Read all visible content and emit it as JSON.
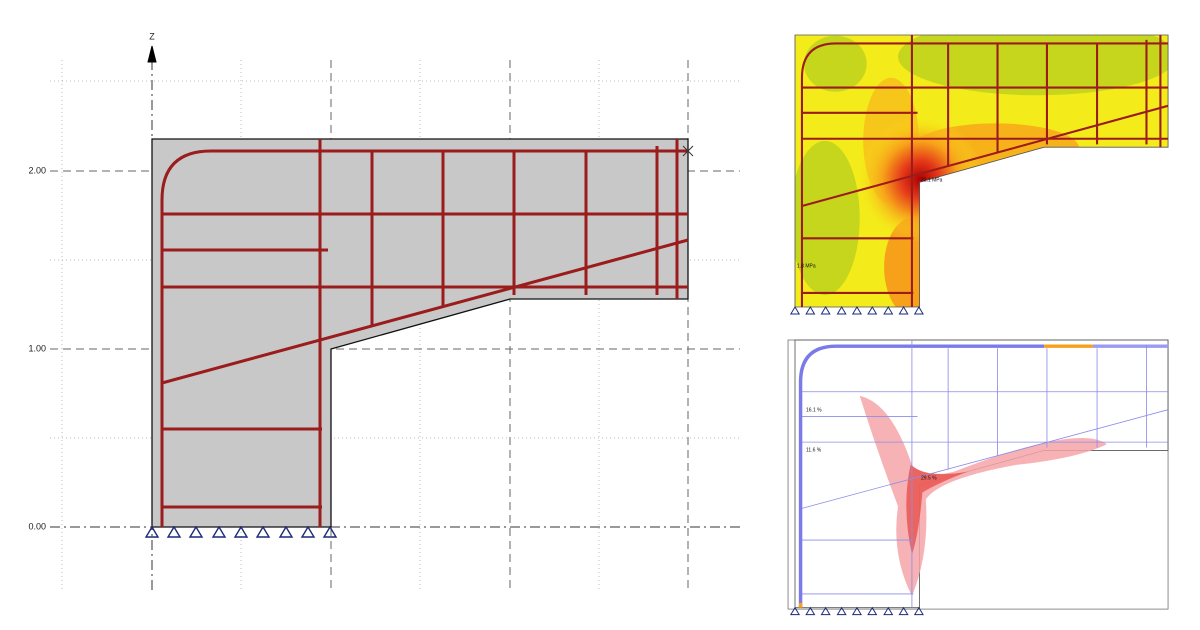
{
  "section_view": {
    "axis_label": "Z",
    "z_ticks": [
      "2.00",
      "1.00",
      "0.00"
    ]
  },
  "stress_view": {
    "annotations": [
      "32.1 MPa",
      "1.8 MPa"
    ]
  },
  "strut_view": {
    "annotations": [
      "16.1 %",
      "11.6 %",
      "29.5 %"
    ]
  }
}
